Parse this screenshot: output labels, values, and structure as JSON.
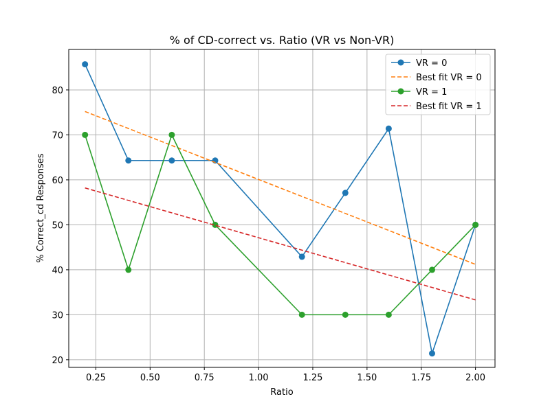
{
  "chart_data": {
    "type": "line",
    "title": "% of CD-correct vs. Ratio (VR vs Non-VR)",
    "xlabel": "Ratio",
    "ylabel": "% Correct_cd Responses",
    "xlim": [
      0.125,
      2.09
    ],
    "ylim": [
      18.3,
      89.0
    ],
    "xticks": [
      0.25,
      0.5,
      0.75,
      1.0,
      1.25,
      1.5,
      1.75,
      2.0
    ],
    "xtick_labels": [
      "0.25",
      "0.50",
      "0.75",
      "1.00",
      "1.25",
      "1.50",
      "1.75",
      "2.00"
    ],
    "yticks": [
      20,
      30,
      40,
      50,
      60,
      70,
      80
    ],
    "ytick_labels": [
      "20",
      "30",
      "40",
      "50",
      "60",
      "70",
      "80"
    ],
    "grid": true,
    "legend_position": "top-right",
    "series": [
      {
        "name": "VR = 0",
        "style": "solid-marker",
        "color": "#1f77b4",
        "x": [
          0.2,
          0.4,
          0.6,
          0.8,
          1.2,
          1.4,
          1.6,
          1.8,
          2.0
        ],
        "y": [
          85.7,
          64.3,
          64.3,
          64.3,
          42.9,
          57.1,
          71.4,
          21.4,
          50.0
        ]
      },
      {
        "name": "Best fit VR = 0",
        "style": "dashed",
        "color": "#ff7f0e",
        "x": [
          0.2,
          2.0
        ],
        "y": [
          75.2,
          41.2
        ]
      },
      {
        "name": "VR = 1",
        "style": "solid-marker",
        "color": "#2ca02c",
        "x": [
          0.2,
          0.4,
          0.6,
          0.8,
          1.2,
          1.4,
          1.6,
          1.8,
          2.0
        ],
        "y": [
          70.0,
          40.0,
          70.0,
          50.0,
          30.0,
          30.0,
          30.0,
          40.0,
          50.0
        ]
      },
      {
        "name": "Best fit VR = 1",
        "style": "dashed",
        "color": "#d62728",
        "x": [
          0.2,
          2.0
        ],
        "y": [
          58.2,
          33.3
        ]
      }
    ]
  }
}
